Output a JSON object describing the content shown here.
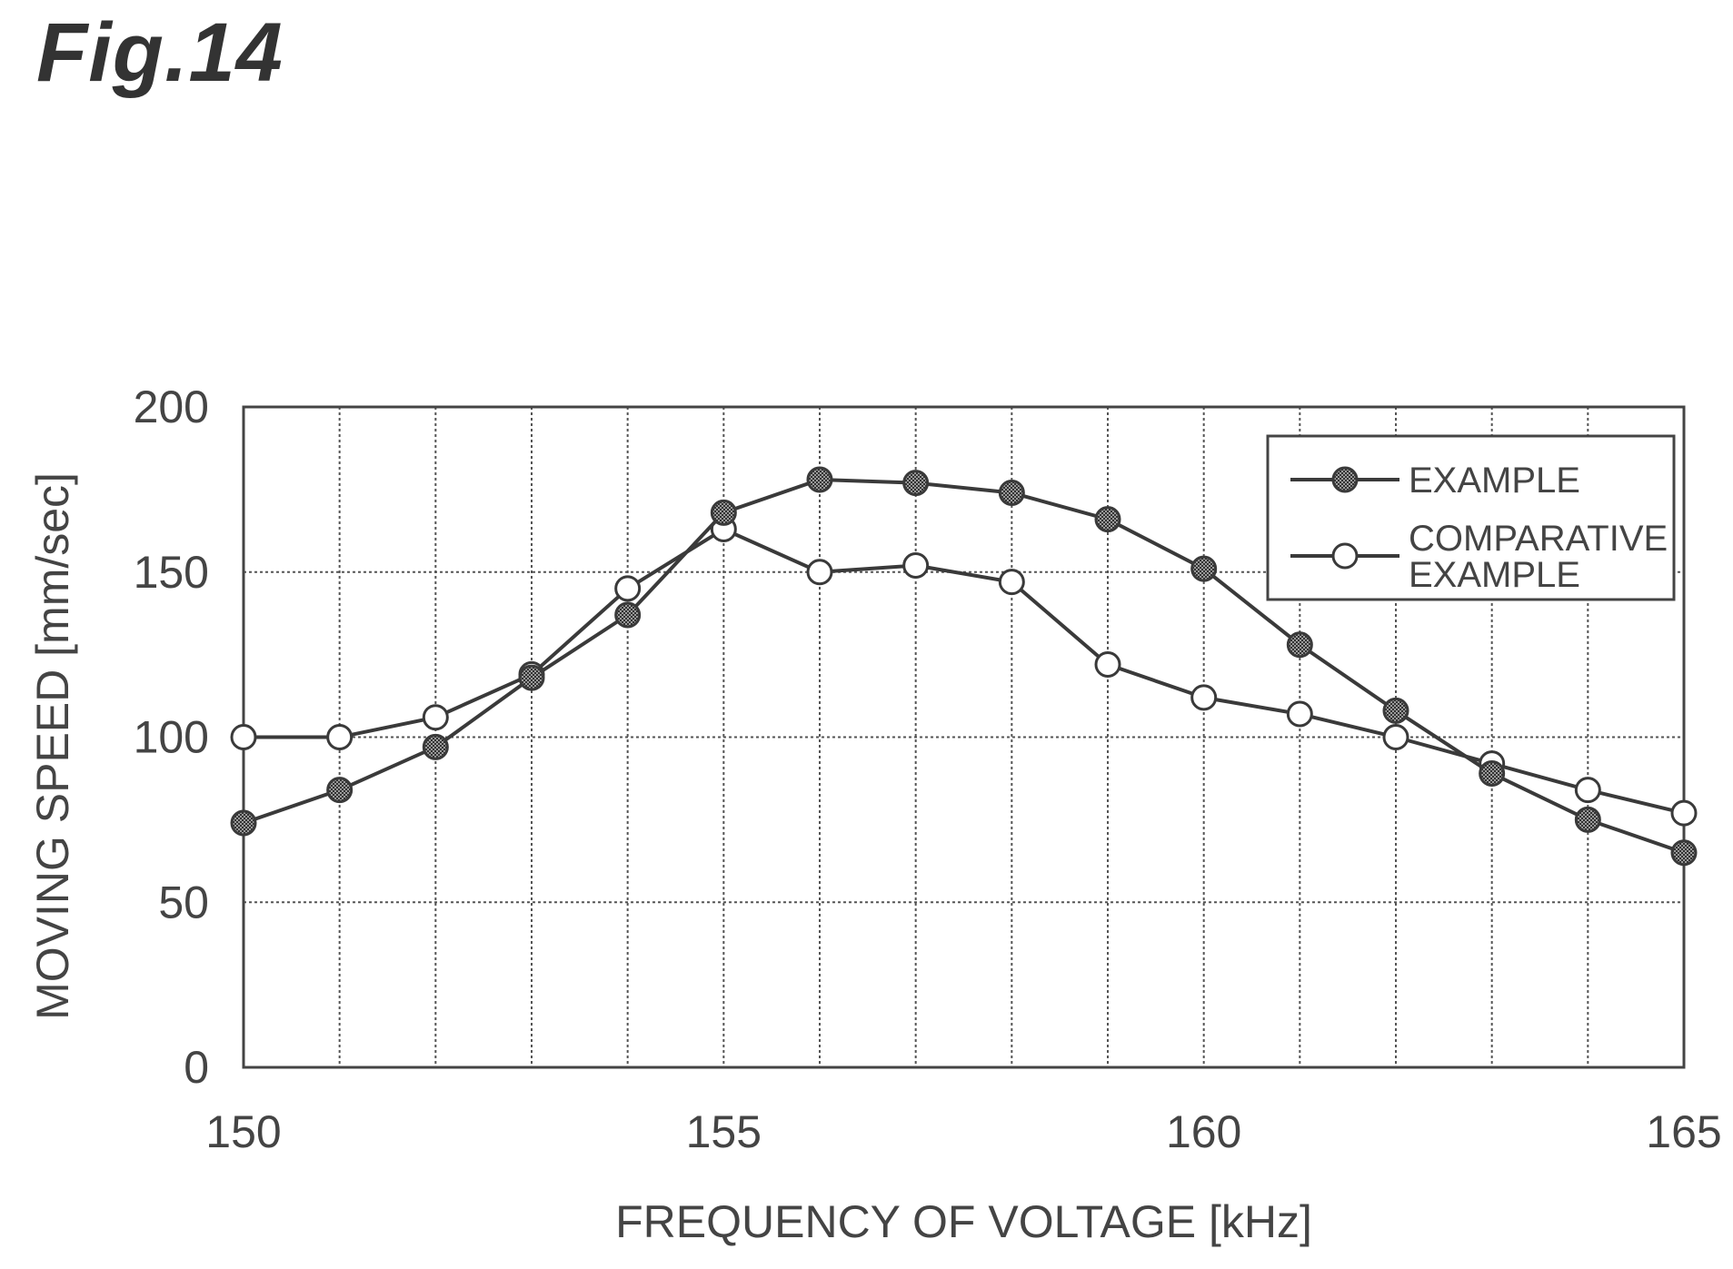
{
  "figure": {
    "label": "Fig.14"
  },
  "chart_data": {
    "type": "line",
    "xlabel": "FREQUENCY OF VOLTAGE [kHz]",
    "ylabel": "MOVING SPEED [mm/sec]",
    "xlim": [
      150,
      165
    ],
    "ylim": [
      0,
      200
    ],
    "xticks": [
      150,
      155,
      160,
      165
    ],
    "yticks": [
      0,
      50,
      100,
      150,
      200
    ],
    "grid": true,
    "legend_position": "top-right",
    "x": [
      150,
      151,
      152,
      153,
      154,
      155,
      156,
      157,
      158,
      159,
      160,
      161,
      162,
      163,
      164,
      165
    ],
    "series": [
      {
        "name": "EXAMPLE",
        "name_lines": [
          "EXAMPLE"
        ],
        "marker": "filled-circle",
        "values": [
          74,
          84,
          97,
          118,
          137,
          168,
          178,
          177,
          174,
          166,
          151,
          128,
          108,
          89,
          75,
          65
        ]
      },
      {
        "name": "COMPARATIVE EXAMPLE",
        "name_lines": [
          "COMPARATIVE",
          "EXAMPLE"
        ],
        "marker": "open-circle",
        "values": [
          100,
          100,
          106,
          119,
          145,
          163,
          150,
          152,
          147,
          122,
          112,
          107,
          100,
          92,
          84,
          77
        ]
      }
    ],
    "colors": {
      "line": "#3a3a3a",
      "filled_marker": "#555555",
      "open_marker": "#ffffff",
      "grid": "#555555"
    }
  }
}
